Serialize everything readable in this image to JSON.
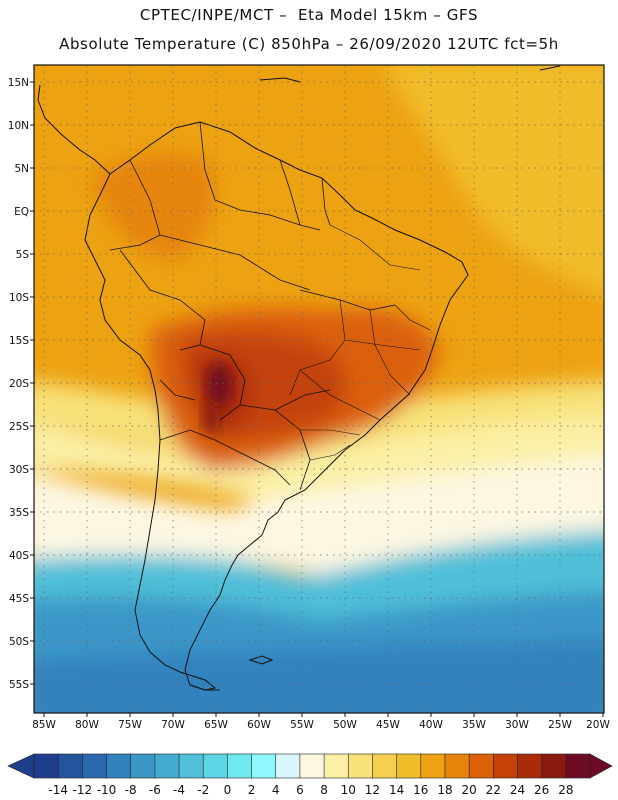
{
  "header": {
    "title_line1": "CPTEC/INPE/MCT –  Eta Model 15km – GFS",
    "title_line2": "Absolute Temperature (C) 850hPa – 26/09/2020 12UTC fct=5h"
  },
  "axes": {
    "lat_labels": [
      "15N",
      "10N",
      "5N",
      "EQ",
      "5S",
      "10S",
      "15S",
      "20S",
      "25S",
      "30S",
      "35S",
      "40S",
      "45S",
      "50S",
      "55S"
    ],
    "lon_labels": [
      "85W",
      "80W",
      "75W",
      "70W",
      "65W",
      "60W",
      "55W",
      "50W",
      "45W",
      "40W",
      "35W",
      "30W",
      "25W",
      "20W"
    ]
  },
  "colorbar": {
    "labels": [
      "-14",
      "-12",
      "-10",
      "-8",
      "-6",
      "-4",
      "-2",
      "0",
      "2",
      "4",
      "6",
      "8",
      "10",
      "12",
      "14",
      "16",
      "18",
      "20",
      "22",
      "24",
      "26",
      "28"
    ],
    "colors": [
      "#1e3e8c",
      "#24559c",
      "#2b69ad",
      "#3282bd",
      "#3a97c8",
      "#44aad0",
      "#50bfd8",
      "#5ed5e4",
      "#6fe8f0",
      "#8ff8ff",
      "#d8f7fc",
      "#fdf7e2",
      "#fbf0a6",
      "#f8e27a",
      "#f5d050",
      "#f1bc2a",
      "#eda212",
      "#e6850a",
      "#db6008",
      "#c44208",
      "#a82c08",
      "#8a1a10",
      "#6d0a24"
    ],
    "under_color": "#1e3e8c",
    "over_color": "#6d0a24"
  }
}
